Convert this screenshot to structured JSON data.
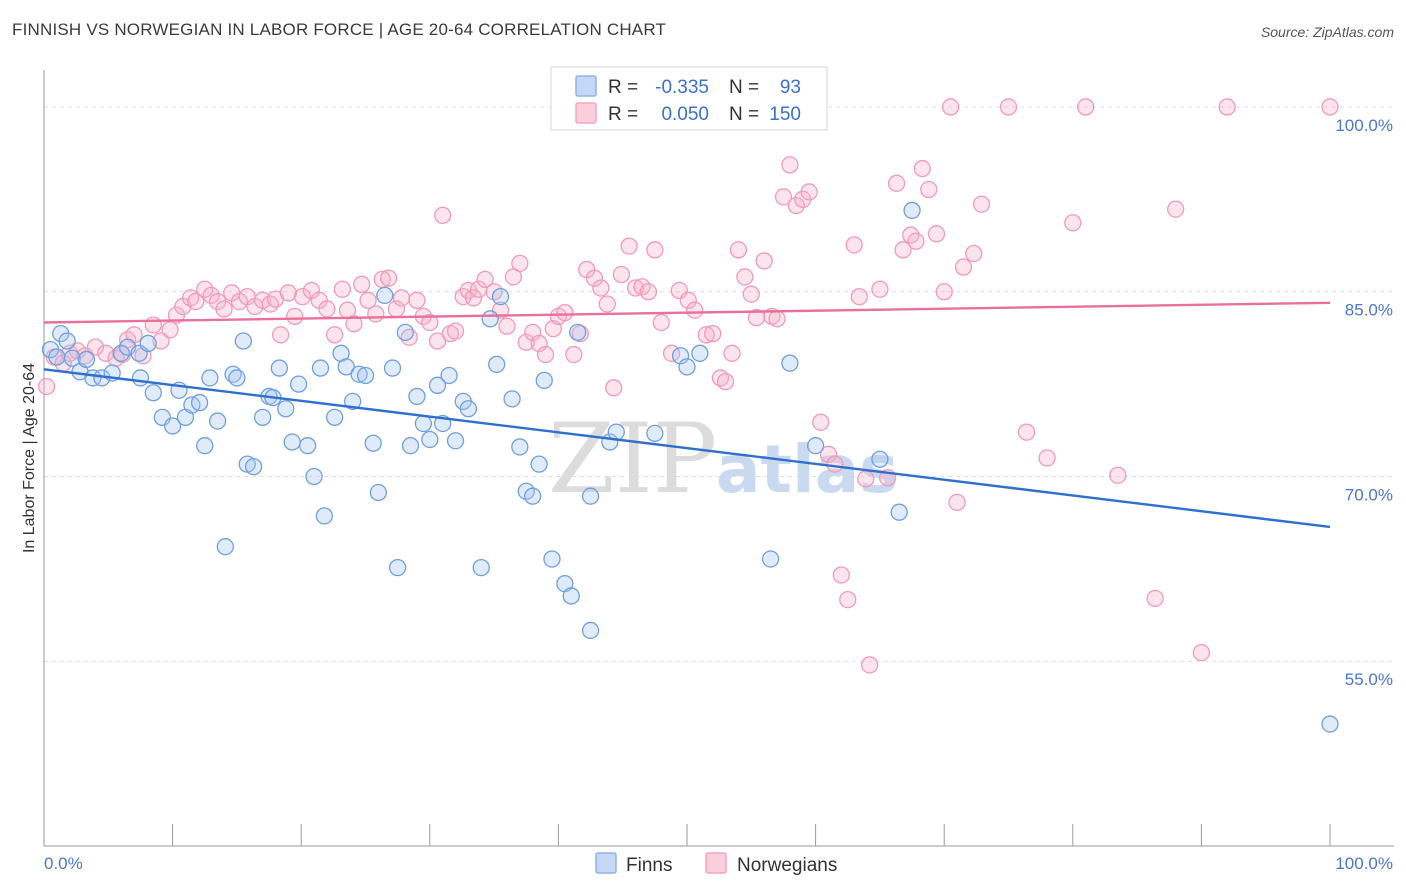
{
  "header": {
    "title": "FINNISH VS NORWEGIAN IN LABOR FORCE | AGE 20-64 CORRELATION CHART",
    "source": "Source: ZipAtlas.com"
  },
  "watermark": {
    "zip": "ZIP",
    "atlas": "atlas"
  },
  "stats_legend": {
    "rows": [
      {
        "r_label": "R =",
        "r_value": "-0.335",
        "n_label": "N =",
        "n_value": "93",
        "color": "#8db3ea"
      },
      {
        "r_label": "R =",
        "r_value": "0.050",
        "n_label": "N =",
        "n_value": "150",
        "color": "#f4a6c0"
      }
    ]
  },
  "chart_data": {
    "type": "scatter",
    "title": "FINNISH VS NORWEGIAN IN LABOR FORCE | AGE 20-64 CORRELATION CHART",
    "xlabel": "",
    "ylabel": "In Labor Force | Age 20-64",
    "xlim": [
      0,
      100
    ],
    "ylim": [
      40,
      103
    ],
    "x_tick_labels": [
      "0.0%",
      "100.0%"
    ],
    "y_ticks": [
      55,
      70,
      85,
      100
    ],
    "y_tick_labels": [
      "55.0%",
      "70.0%",
      "85.0%",
      "100.0%"
    ],
    "grid": true,
    "legend_position": "bottom",
    "series": [
      {
        "name": "Finns",
        "color": "#6f9fe0",
        "trend_color": "#2f6fd0",
        "trend": {
          "x": [
            0,
            100
          ],
          "y": [
            78.7,
            65.9
          ]
        },
        "points": [
          [
            0.5,
            80.3
          ],
          [
            1.0,
            79.7
          ],
          [
            1.3,
            81.6
          ],
          [
            1.8,
            81.0
          ],
          [
            2.2,
            79.6
          ],
          [
            2.8,
            78.5
          ],
          [
            3.3,
            79.5
          ],
          [
            3.8,
            78.0
          ],
          [
            4.5,
            78.0
          ],
          [
            5.3,
            78.4
          ],
          [
            6.0,
            80.0
          ],
          [
            6.5,
            80.5
          ],
          [
            7.4,
            80.0
          ],
          [
            8.1,
            80.8
          ],
          [
            7.5,
            78.0
          ],
          [
            8.5,
            76.8
          ],
          [
            9.2,
            74.8
          ],
          [
            10.0,
            74.1
          ],
          [
            10.5,
            77.0
          ],
          [
            11.0,
            74.8
          ],
          [
            11.5,
            75.8
          ],
          [
            12.1,
            76.0
          ],
          [
            12.5,
            72.5
          ],
          [
            12.9,
            78.0
          ],
          [
            13.5,
            74.5
          ],
          [
            14.1,
            64.3
          ],
          [
            14.7,
            78.3
          ],
          [
            15.0,
            78.0
          ],
          [
            15.5,
            81.0
          ],
          [
            15.8,
            71.0
          ],
          [
            16.3,
            70.8
          ],
          [
            17.0,
            74.8
          ],
          [
            17.5,
            76.5
          ],
          [
            17.8,
            76.4
          ],
          [
            18.3,
            78.8
          ],
          [
            18.8,
            75.5
          ],
          [
            19.3,
            72.8
          ],
          [
            19.8,
            77.5
          ],
          [
            20.5,
            72.5
          ],
          [
            21.0,
            70.0
          ],
          [
            21.5,
            78.8
          ],
          [
            21.8,
            66.8
          ],
          [
            22.6,
            74.8
          ],
          [
            23.1,
            80.0
          ],
          [
            23.5,
            78.9
          ],
          [
            24.0,
            76.1
          ],
          [
            24.5,
            78.3
          ],
          [
            25.0,
            78.2
          ],
          [
            25.6,
            72.7
          ],
          [
            26.0,
            68.7
          ],
          [
            26.5,
            84.7
          ],
          [
            27.1,
            78.8
          ],
          [
            27.5,
            62.6
          ],
          [
            28.1,
            81.7
          ],
          [
            28.5,
            72.5
          ],
          [
            29.0,
            76.5
          ],
          [
            29.5,
            74.3
          ],
          [
            30.0,
            73.0
          ],
          [
            30.6,
            77.4
          ],
          [
            31.0,
            74.3
          ],
          [
            31.5,
            78.2
          ],
          [
            32.0,
            72.9
          ],
          [
            32.6,
            76.1
          ],
          [
            33.0,
            75.5
          ],
          [
            34.0,
            62.6
          ],
          [
            34.7,
            82.8
          ],
          [
            35.2,
            79.1
          ],
          [
            35.5,
            84.6
          ],
          [
            36.4,
            76.3
          ],
          [
            37.0,
            72.4
          ],
          [
            37.5,
            68.8
          ],
          [
            38.0,
            68.4
          ],
          [
            38.5,
            71.0
          ],
          [
            38.9,
            77.8
          ],
          [
            39.5,
            63.3
          ],
          [
            40.5,
            61.3
          ],
          [
            41.0,
            60.3
          ],
          [
            41.5,
            81.7
          ],
          [
            42.5,
            57.5
          ],
          [
            42.5,
            68.4
          ],
          [
            44.0,
            72.8
          ],
          [
            44.5,
            73.6
          ],
          [
            46.0,
            100.5
          ],
          [
            47.5,
            73.5
          ],
          [
            49.5,
            79.8
          ],
          [
            50.0,
            78.9
          ],
          [
            51.0,
            80.0
          ],
          [
            56.5,
            63.3
          ],
          [
            58.0,
            79.2
          ],
          [
            60.0,
            72.5
          ],
          [
            65.0,
            71.4
          ],
          [
            66.5,
            67.1
          ],
          [
            67.5,
            91.6
          ],
          [
            100.0,
            49.9
          ]
        ]
      },
      {
        "name": "Norwegians",
        "color": "#f29ab5",
        "trend_color": "#e8709a",
        "trend": {
          "x": [
            0,
            100
          ],
          "y": [
            82.5,
            84.1
          ]
        },
        "points": [
          [
            0.2,
            77.3
          ],
          [
            0.8,
            79.7
          ],
          [
            1.5,
            79.2
          ],
          [
            2.0,
            80.0
          ],
          [
            2.6,
            80.2
          ],
          [
            3.2,
            79.8
          ],
          [
            4.0,
            80.5
          ],
          [
            4.8,
            80.0
          ],
          [
            5.6,
            79.6
          ],
          [
            6.1,
            79.9
          ],
          [
            6.5,
            81.1
          ],
          [
            7.0,
            81.5
          ],
          [
            7.7,
            79.8
          ],
          [
            8.5,
            82.3
          ],
          [
            9.1,
            81.0
          ],
          [
            9.8,
            81.9
          ],
          [
            10.3,
            83.1
          ],
          [
            10.8,
            83.8
          ],
          [
            11.4,
            84.5
          ],
          [
            11.8,
            84.2
          ],
          [
            12.5,
            85.2
          ],
          [
            13.0,
            84.7
          ],
          [
            13.5,
            84.2
          ],
          [
            14.0,
            83.6
          ],
          [
            14.6,
            84.9
          ],
          [
            15.2,
            84.2
          ],
          [
            15.8,
            84.6
          ],
          [
            16.4,
            83.8
          ],
          [
            17.0,
            84.3
          ],
          [
            17.6,
            84.0
          ],
          [
            18.0,
            84.4
          ],
          [
            18.4,
            81.5
          ],
          [
            19.0,
            84.9
          ],
          [
            19.5,
            83.0
          ],
          [
            20.1,
            84.6
          ],
          [
            20.8,
            85.1
          ],
          [
            21.4,
            84.3
          ],
          [
            22.0,
            83.6
          ],
          [
            22.6,
            81.5
          ],
          [
            23.2,
            85.2
          ],
          [
            23.6,
            83.5
          ],
          [
            24.1,
            82.4
          ],
          [
            24.7,
            85.6
          ],
          [
            25.2,
            84.3
          ],
          [
            25.8,
            83.2
          ],
          [
            26.3,
            86.0
          ],
          [
            26.8,
            86.1
          ],
          [
            27.4,
            83.6
          ],
          [
            27.8,
            84.5
          ],
          [
            28.4,
            81.3
          ],
          [
            29.0,
            84.3
          ],
          [
            29.5,
            83.0
          ],
          [
            30.0,
            82.5
          ],
          [
            30.6,
            81.0
          ],
          [
            31.0,
            91.2
          ],
          [
            31.6,
            81.6
          ],
          [
            32.0,
            81.8
          ],
          [
            32.6,
            84.6
          ],
          [
            33.0,
            85.1
          ],
          [
            33.4,
            84.5
          ],
          [
            33.8,
            85.2
          ],
          [
            34.3,
            86.0
          ],
          [
            35.0,
            85.0
          ],
          [
            35.5,
            83.5
          ],
          [
            36.0,
            82.2
          ],
          [
            36.5,
            86.2
          ],
          [
            37.0,
            87.3
          ],
          [
            37.5,
            80.9
          ],
          [
            38.0,
            81.7
          ],
          [
            38.5,
            80.8
          ],
          [
            39.0,
            79.9
          ],
          [
            39.6,
            82.0
          ],
          [
            40.0,
            83.0
          ],
          [
            40.5,
            83.3
          ],
          [
            41.2,
            79.9
          ],
          [
            41.7,
            81.6
          ],
          [
            42.2,
            86.8
          ],
          [
            42.8,
            86.1
          ],
          [
            43.3,
            85.3
          ],
          [
            43.8,
            84.0
          ],
          [
            44.3,
            77.2
          ],
          [
            44.9,
            86.4
          ],
          [
            45.5,
            88.7
          ],
          [
            46.0,
            85.3
          ],
          [
            46.5,
            85.4
          ],
          [
            47.0,
            85.0
          ],
          [
            47.5,
            88.4
          ],
          [
            48.0,
            82.5
          ],
          [
            48.8,
            80.0
          ],
          [
            49.4,
            85.1
          ],
          [
            50.1,
            84.3
          ],
          [
            50.6,
            83.5
          ],
          [
            51.5,
            81.5
          ],
          [
            52.0,
            81.6
          ],
          [
            52.6,
            78.0
          ],
          [
            53.0,
            77.7
          ],
          [
            53.5,
            80.0
          ],
          [
            54.0,
            88.4
          ],
          [
            54.5,
            86.2
          ],
          [
            55.0,
            84.8
          ],
          [
            55.4,
            82.9
          ],
          [
            56.0,
            87.5
          ],
          [
            56.6,
            83.0
          ],
          [
            57.0,
            82.8
          ],
          [
            57.5,
            92.7
          ],
          [
            58.0,
            95.3
          ],
          [
            58.5,
            92.0
          ],
          [
            59.0,
            92.5
          ],
          [
            59.5,
            93.1
          ],
          [
            60.4,
            74.4
          ],
          [
            61.0,
            71.8
          ],
          [
            61.5,
            71.0
          ],
          [
            62.0,
            62.0
          ],
          [
            62.5,
            60.0
          ],
          [
            63.0,
            88.8
          ],
          [
            63.4,
            84.6
          ],
          [
            63.9,
            69.8
          ],
          [
            64.2,
            54.7
          ],
          [
            65.0,
            85.2
          ],
          [
            65.6,
            69.9
          ],
          [
            66.3,
            93.8
          ],
          [
            66.8,
            88.4
          ],
          [
            67.4,
            89.6
          ],
          [
            67.8,
            89.1
          ],
          [
            68.3,
            95.0
          ],
          [
            68.8,
            93.3
          ],
          [
            69.4,
            89.7
          ],
          [
            70.0,
            85.0
          ],
          [
            70.5,
            100.0
          ],
          [
            71.0,
            67.9
          ],
          [
            71.5,
            87.0
          ],
          [
            72.3,
            88.1
          ],
          [
            72.9,
            92.1
          ],
          [
            75.0,
            100.0
          ],
          [
            76.4,
            73.6
          ],
          [
            78.0,
            71.5
          ],
          [
            80.0,
            90.6
          ],
          [
            81.0,
            100.0
          ],
          [
            83.5,
            70.1
          ],
          [
            86.4,
            60.1
          ],
          [
            88.0,
            91.7
          ],
          [
            90.0,
            55.7
          ],
          [
            92.0,
            100.0
          ],
          [
            100.0,
            100.0
          ]
        ]
      }
    ]
  }
}
